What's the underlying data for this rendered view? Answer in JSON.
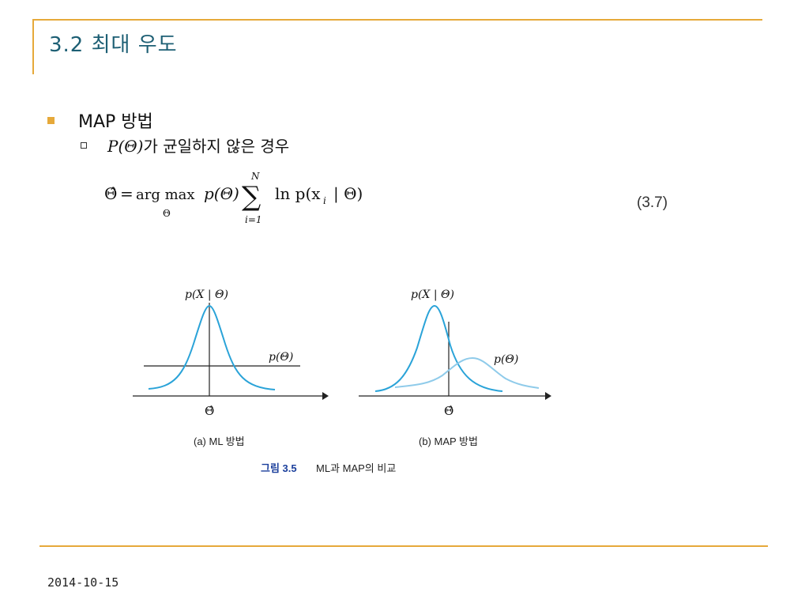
{
  "slide": {
    "title": "3.2 최대 우도",
    "bullet_main": "MAP 방법",
    "sub_bullet_prefix": "P(Θ)",
    "sub_bullet_text": "가 균일하지 않은 경우",
    "equation_number": "(3.7)",
    "date": "2014-10-15"
  },
  "equation": {
    "lhs": "Θ̂",
    "eq": "=",
    "argmax": "arg max",
    "argmax_sub": "Θ",
    "prior": "p(Θ)",
    "sum_sup": "N",
    "sum_sub": "i=1",
    "term": "ln p(x",
    "term_sub": "i",
    "term_end": "| Θ)"
  },
  "figure": {
    "panel_a": {
      "likelihood_label": "p(X | Θ)",
      "prior_label": "p(Θ)",
      "axis_label": "Θ̂",
      "caption": "(a) ML 방법"
    },
    "panel_b": {
      "likelihood_label": "p(X | Θ)",
      "prior_label": "p(Θ)",
      "axis_label": "Θ̂",
      "caption": "(b) MAP 방법"
    },
    "caption_num": "그림 3.5",
    "caption_text": "ML과 MAP의 비교",
    "colors": {
      "likelihood": "#2aa3d8",
      "prior": "#8fcbea",
      "axis": "#222222",
      "caption_num": "#1b3f9c"
    }
  }
}
